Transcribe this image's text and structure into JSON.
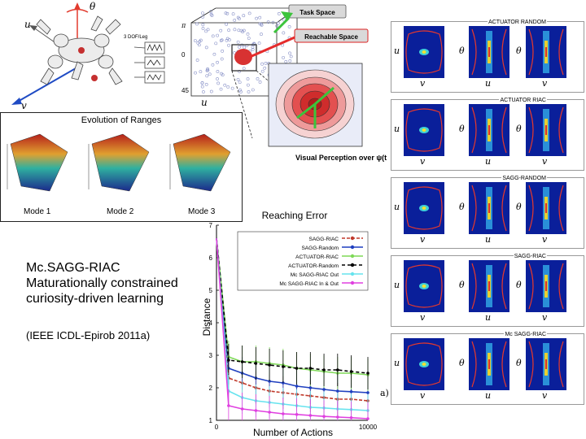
{
  "robot": {
    "axis_theta": "θ",
    "axis_u": "u",
    "axis_v": "v",
    "dof_label": "3 DOF/Leg"
  },
  "task_space": {
    "task_space_label": "Task Space",
    "reachable_space_label": "Reachable Space",
    "visual_perception_label": "Visual Perception over ψ(t)",
    "axis_u": "u",
    "axis_pi": "π",
    "axis_zero": "0",
    "axis_45": "45"
  },
  "evolution": {
    "title": "Evolution of Ranges",
    "modes": [
      "Mode 1",
      "Mode 2",
      "Mode 3"
    ]
  },
  "caption": {
    "line1": "Mc.SAGG-RIAC",
    "line2": "Maturationally constrained",
    "line3": "curiosity-driven learning",
    "venue": "(IEEE ICDL-Epirob 2011a)"
  },
  "chart_data": {
    "type": "line",
    "title": "Reaching Error",
    "xlabel": "Number of Actions",
    "ylabel": "Distance",
    "xlim": [
      0,
      10000
    ],
    "ylim": [
      1,
      7
    ],
    "x_ticks": [
      "0",
      "10000"
    ],
    "y_ticks": [
      "1",
      "2",
      "3",
      "4",
      "5",
      "6",
      "7"
    ],
    "panel_label": "a)",
    "x": [
      0,
      800,
      1700,
      2600,
      3500,
      4400,
      5300,
      6200,
      7100,
      8000,
      8900,
      10000
    ],
    "series": [
      {
        "name": "SAGG-RIAC",
        "color": "#c0392b",
        "dash": "4,2",
        "marker": "diamond",
        "values": [
          6.6,
          2.3,
          2.15,
          2.0,
          1.9,
          1.85,
          1.8,
          1.75,
          1.7,
          1.65,
          1.65,
          1.6
        ]
      },
      {
        "name": "SAGG-Random",
        "color": "#1f3fbf",
        "dash": "",
        "marker": "circle",
        "values": [
          6.6,
          2.6,
          2.45,
          2.3,
          2.2,
          2.15,
          2.05,
          2.0,
          1.95,
          1.9,
          1.88,
          1.85
        ]
      },
      {
        "name": "ACTUATOR-RIAC",
        "color": "#7ed957",
        "dash": "",
        "marker": "triangle",
        "values": [
          6.6,
          2.95,
          2.8,
          2.8,
          2.75,
          2.7,
          2.6,
          2.55,
          2.5,
          2.45,
          2.45,
          2.4
        ]
      },
      {
        "name": "ACTUATOR-Random",
        "color": "#000000",
        "dash": "4,3",
        "marker": "square",
        "values": [
          6.6,
          2.85,
          2.8,
          2.75,
          2.7,
          2.65,
          2.6,
          2.6,
          2.55,
          2.55,
          2.5,
          2.45
        ]
      },
      {
        "name": "Mc SAGG-RIAC Out",
        "color": "#66e3ee",
        "dash": "",
        "marker": "x",
        "values": [
          6.6,
          1.9,
          1.7,
          1.6,
          1.55,
          1.5,
          1.45,
          1.4,
          1.38,
          1.35,
          1.33,
          1.3
        ]
      },
      {
        "name": "Mc SAGG-RIAC In & Out",
        "color": "#e040e0",
        "dash": "",
        "marker": "triangle-down",
        "values": [
          6.6,
          1.45,
          1.35,
          1.3,
          1.25,
          1.2,
          1.18,
          1.15,
          1.12,
          1.1,
          1.08,
          1.05
        ]
      }
    ]
  },
  "grid": {
    "rows": [
      {
        "title": "ACTUATOR RANDOM",
        "labels_y": [
          "u",
          "θ",
          "θ"
        ],
        "labels_x": [
          "v",
          "u",
          "v"
        ]
      },
      {
        "title": "ACTUATOR RIAC",
        "labels_y": [
          "u",
          "θ",
          "θ"
        ],
        "labels_x": [
          "v",
          "u",
          "v"
        ]
      },
      {
        "title": "SAGG-RANDOM",
        "labels_y": [
          "u",
          "θ",
          "θ"
        ],
        "labels_x": [
          "v",
          "u",
          "v"
        ]
      },
      {
        "title": "SAGG-RIAC",
        "labels_y": [
          "u",
          "θ",
          "θ"
        ],
        "labels_x": [
          "v",
          "u",
          "v"
        ]
      },
      {
        "title": "Mc SAGG-RIAC",
        "labels_y": [
          "u",
          "θ",
          "θ"
        ],
        "labels_x": [
          "v",
          "u",
          "v"
        ]
      }
    ]
  },
  "colors": {
    "heat_bg": "#0a1f9a",
    "contour": "#e8392b",
    "green_arrow": "#3cc43c",
    "red_arrow": "#e52b2b",
    "blue_arrow": "#1a55c8"
  }
}
